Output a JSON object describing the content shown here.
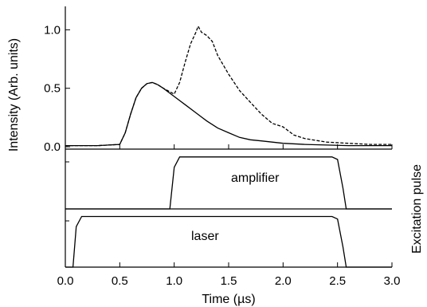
{
  "chart_data": [
    {
      "type": "line",
      "panel": "top",
      "ylabel": "Intensity (Arb. units)",
      "xlim": [
        0,
        3.0
      ],
      "ylim": [
        -0.02,
        1.2
      ],
      "yticks": [
        0.0,
        0.5,
        1.0
      ],
      "ytick_labels": [
        "0.0",
        "0.5",
        "1.0"
      ],
      "series": [
        {
          "style": "solid",
          "x": [
            0.0,
            0.3,
            0.5,
            0.55,
            0.6,
            0.65,
            0.7,
            0.75,
            0.8,
            0.85,
            0.9,
            1.0,
            1.1,
            1.2,
            1.3,
            1.4,
            1.5,
            1.6,
            1.7,
            1.8,
            1.9,
            2.0,
            2.2,
            2.4,
            2.6,
            2.8,
            3.0
          ],
          "y": [
            0.01,
            0.01,
            0.02,
            0.12,
            0.28,
            0.42,
            0.5,
            0.54,
            0.55,
            0.53,
            0.5,
            0.43,
            0.36,
            0.29,
            0.22,
            0.16,
            0.12,
            0.08,
            0.06,
            0.05,
            0.04,
            0.03,
            0.02,
            0.015,
            0.01,
            0.01,
            0.01
          ]
        },
        {
          "style": "dashed",
          "x": [
            0.0,
            0.3,
            0.5,
            0.55,
            0.6,
            0.65,
            0.7,
            0.75,
            0.8,
            0.85,
            0.9,
            1.0,
            1.05,
            1.1,
            1.15,
            1.2,
            1.22,
            1.25,
            1.3,
            1.35,
            1.4,
            1.5,
            1.6,
            1.7,
            1.8,
            1.9,
            2.0,
            2.1,
            2.2,
            2.4,
            2.6,
            2.8,
            3.0
          ],
          "y": [
            0.01,
            0.01,
            0.02,
            0.12,
            0.28,
            0.42,
            0.5,
            0.54,
            0.55,
            0.53,
            0.5,
            0.45,
            0.55,
            0.72,
            0.88,
            0.98,
            1.03,
            0.98,
            0.95,
            0.9,
            0.78,
            0.62,
            0.48,
            0.38,
            0.28,
            0.2,
            0.17,
            0.1,
            0.07,
            0.04,
            0.03,
            0.02,
            0.02
          ]
        }
      ]
    },
    {
      "type": "line",
      "panel": "middle",
      "name": "amplifier",
      "x": [
        0.96,
        1.0,
        1.05,
        2.45,
        2.5,
        2.55,
        2.58
      ],
      "y": [
        0,
        0.8,
        1,
        1,
        0.95,
        0.4,
        0
      ],
      "ylim": [
        0,
        1.15
      ]
    },
    {
      "type": "line",
      "panel": "bottom",
      "name": "laser",
      "x": [
        0.07,
        0.1,
        0.15,
        2.45,
        2.5,
        2.55,
        2.58
      ],
      "y": [
        0,
        0.8,
        1,
        1,
        0.95,
        0.4,
        0
      ],
      "ylim": [
        0,
        1.15
      ]
    }
  ],
  "xaxis": {
    "label": "Time (µs)",
    "xlim": [
      0,
      3.0
    ],
    "ticks": [
      0.0,
      0.5,
      1.0,
      1.5,
      2.0,
      2.5,
      3.0
    ],
    "tick_labels": [
      "0.0",
      "0.5",
      "1.0",
      "1.5",
      "2.0",
      "2.5",
      "3.0"
    ]
  },
  "right_label": "Excitation pulse",
  "labels": {
    "amplifier": "amplifier",
    "laser": "laser"
  }
}
